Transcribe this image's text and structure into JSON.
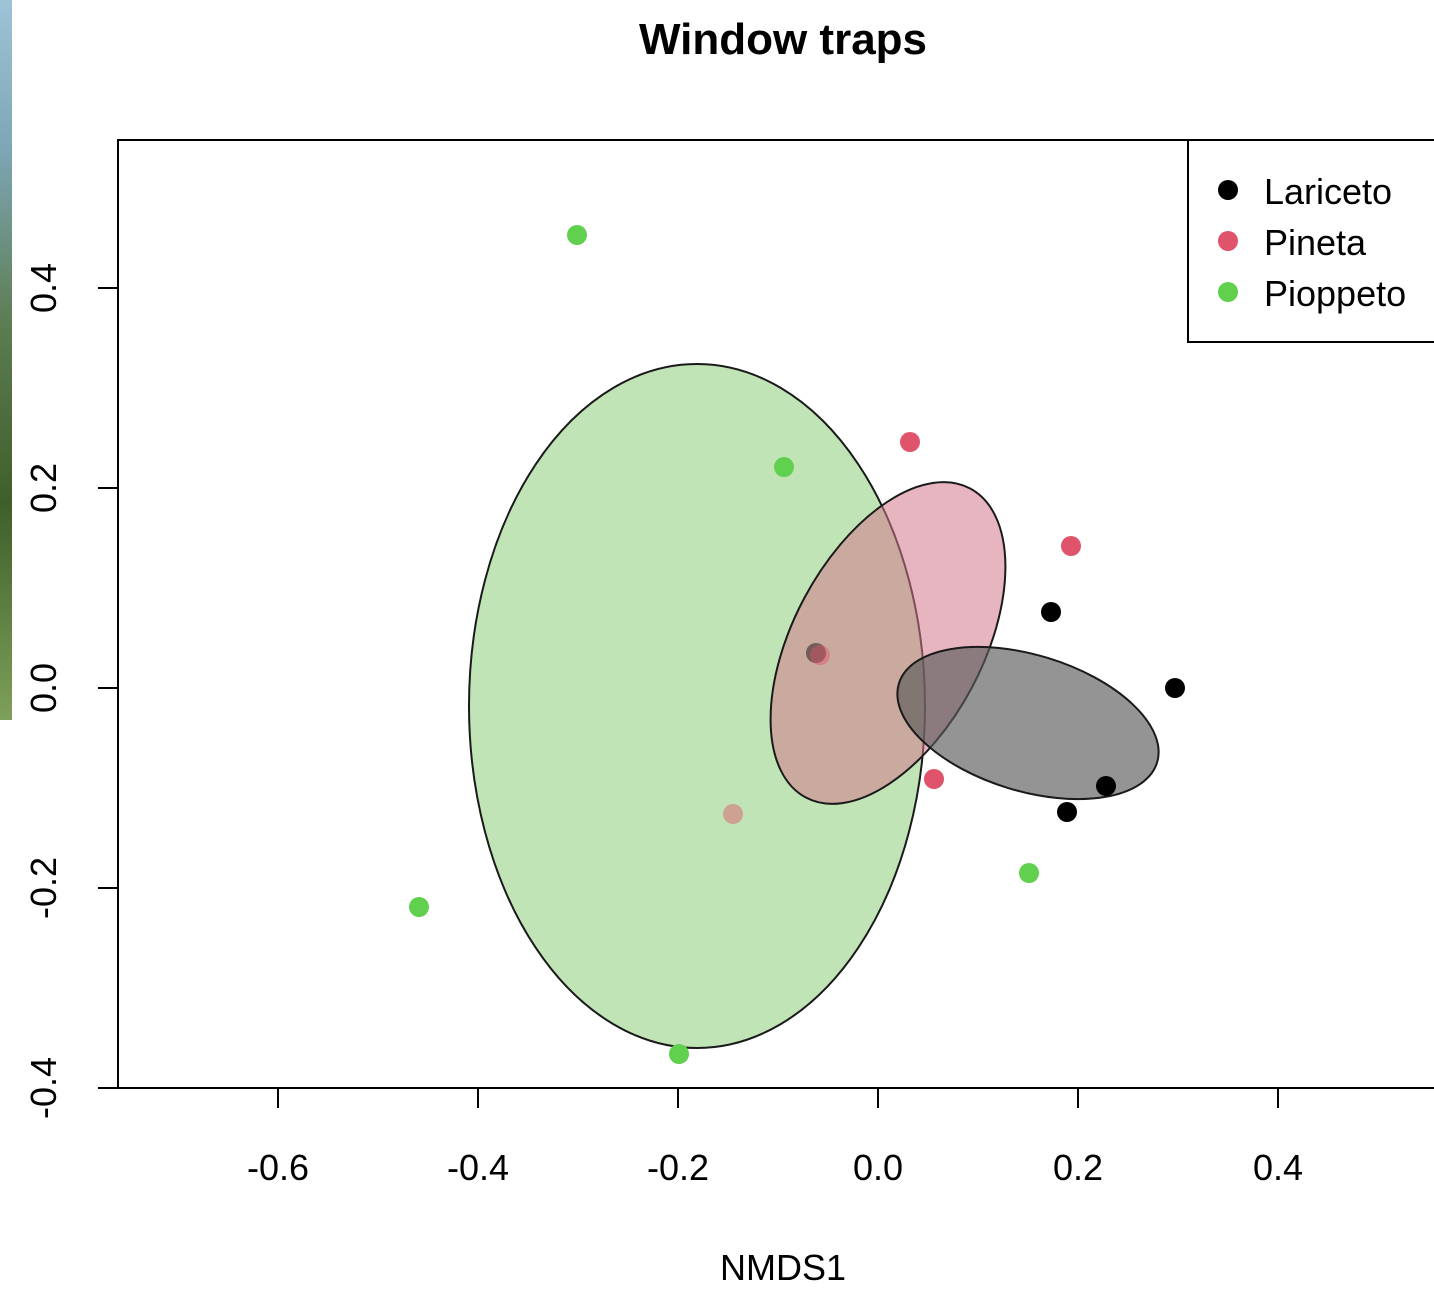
{
  "chart_data": {
    "type": "scatter",
    "title": "Window traps",
    "xlabel": "NMDS1",
    "ylabel": "",
    "xlim": [
      -0.8,
      0.56
    ],
    "ylim": [
      -0.4,
      0.55
    ],
    "xticks": [
      -0.6,
      -0.4,
      -0.2,
      0.0,
      0.2,
      0.4
    ],
    "yticks": [
      -0.4,
      -0.2,
      0.0,
      0.2,
      0.4
    ],
    "xtick_labels": [
      "-0.6",
      "-0.4",
      "-0.2",
      "0.0",
      "0.2",
      "0.4"
    ],
    "ytick_labels": [
      "-0.4",
      "-0.2",
      "0.0",
      "0.2",
      "0.4"
    ],
    "legend_position": "top-right",
    "grid": false,
    "series": [
      {
        "name": "Lariceto",
        "color": "#000000",
        "fill": "rgba(90,90,90,0.65)",
        "points": [
          {
            "x": 0.173,
            "y": 0.076
          },
          {
            "x": 0.297,
            "y": 0.0
          },
          {
            "x": 0.228,
            "y": -0.098
          },
          {
            "x": 0.189,
            "y": -0.124
          },
          {
            "x": -0.062,
            "y": 0.035
          }
        ],
        "ellipse": {
          "cx": 0.15,
          "cy": -0.035,
          "rx": 0.135,
          "ry": 0.068,
          "angle_deg": 17
        }
      },
      {
        "name": "Pineta",
        "color": "#df536b",
        "fill": "rgba(210,120,140,0.55)",
        "points": [
          {
            "x": 0.032,
            "y": 0.246
          },
          {
            "x": 0.193,
            "y": 0.142
          },
          {
            "x": 0.056,
            "y": -0.091
          },
          {
            "x": -0.145,
            "y": -0.126
          },
          {
            "x": -0.058,
            "y": 0.033
          }
        ],
        "ellipse": {
          "cx": 0.01,
          "cy": 0.045,
          "rx": 0.095,
          "ry": 0.175,
          "angle_deg": 28
        }
      },
      {
        "name": "Pioppeto",
        "color": "#61d04f",
        "fill": "rgba(140,205,120,0.55)",
        "points": [
          {
            "x": -0.301,
            "y": 0.453
          },
          {
            "x": -0.094,
            "y": 0.221
          },
          {
            "x": 0.151,
            "y": -0.185
          },
          {
            "x": -0.459,
            "y": -0.219
          },
          {
            "x": -0.199,
            "y": -0.366
          }
        ],
        "ellipse": {
          "cx": -0.181,
          "cy": -0.018,
          "rx": 0.228,
          "ry": 0.342,
          "angle_deg": 0
        }
      }
    ]
  }
}
